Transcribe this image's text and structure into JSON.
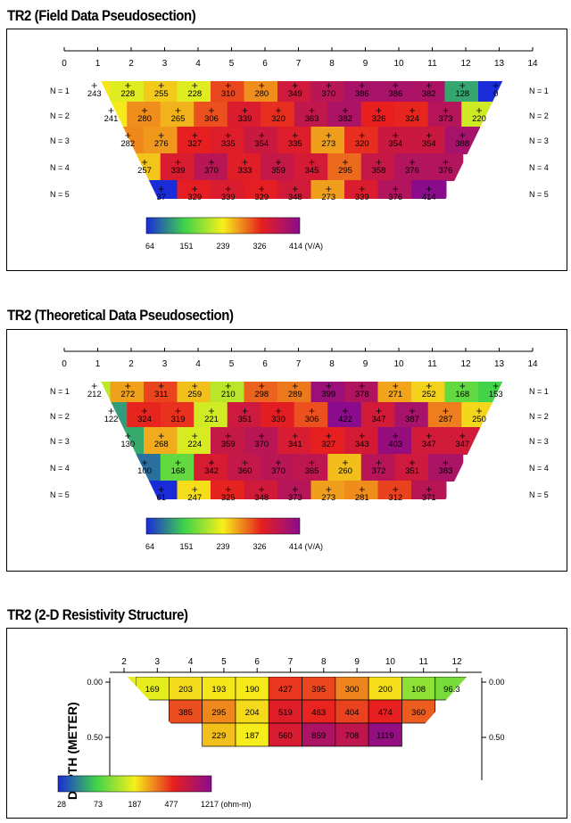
{
  "panels": [
    {
      "title": "TR2 (Field Data Pseudosection)",
      "ticks": [
        "0",
        "1",
        "2",
        "3",
        "4",
        "5",
        "6",
        "7",
        "8",
        "9",
        "10",
        "11",
        "12",
        "13",
        "14"
      ],
      "row_labels": [
        "N = 1",
        "N = 2",
        "N = 3",
        "N = 4",
        "N = 5"
      ],
      "rows": [
        [
          "243",
          "228",
          "255",
          "228",
          "310",
          "280",
          "349",
          "370",
          "386",
          "386",
          "382",
          "128",
          "0"
        ],
        [
          "241",
          "280",
          "265",
          "306",
          "339",
          "320",
          "363",
          "382",
          "326",
          "324",
          "373",
          "220"
        ],
        [
          "282",
          "276",
          "327",
          "335",
          "354",
          "335",
          "273",
          "320",
          "354",
          "354",
          "388"
        ],
        [
          "257",
          "339",
          "370",
          "333",
          "359",
          "345",
          "295",
          "358",
          "376",
          "376"
        ],
        [
          "37",
          "329",
          "339",
          "329",
          "348",
          "273",
          "339",
          "376",
          "414"
        ]
      ],
      "colorbar": {
        "labels": [
          "64",
          "151",
          "239",
          "326",
          "414 (V/A)"
        ]
      }
    },
    {
      "title": "TR2 (Theoretical Data Pseudosection)",
      "ticks": [
        "0",
        "1",
        "2",
        "3",
        "4",
        "5",
        "6",
        "7",
        "8",
        "9",
        "10",
        "11",
        "12",
        "13",
        "14"
      ],
      "row_labels": [
        "N = 1",
        "N = 2",
        "N = 3",
        "N = 4",
        "N = 5"
      ],
      "rows": [
        [
          "212",
          "272",
          "311",
          "259",
          "210",
          "298",
          "289",
          "399",
          "378",
          "271",
          "252",
          "168",
          "153"
        ],
        [
          "122",
          "324",
          "319",
          "221",
          "351",
          "330",
          "306",
          "422",
          "347",
          "387",
          "287",
          "250"
        ],
        [
          "130",
          "268",
          "224",
          "359",
          "370",
          "341",
          "327",
          "343",
          "403",
          "347",
          "347"
        ],
        [
          "100",
          "168",
          "342",
          "360",
          "370",
          "365",
          "260",
          "372",
          "351",
          "383"
        ],
        [
          "61",
          "247",
          "325",
          "348",
          "373",
          "273",
          "281",
          "312",
          "371"
        ]
      ],
      "colorbar": {
        "labels": [
          "64",
          "151",
          "239",
          "326",
          "414 (V/A)"
        ]
      }
    }
  ],
  "resistivity": {
    "title": "TR2 (2-D Resistivity Structure)",
    "ylabel": "DEPTH (METER)",
    "ticks": [
      "2",
      "3",
      "4",
      "5",
      "6",
      "7",
      "8",
      "9",
      "10",
      "11",
      "12"
    ],
    "depth_labels": [
      "0.00",
      "0.50"
    ],
    "rows": [
      [
        "169",
        "203",
        "193",
        "190",
        "427",
        "395",
        "300",
        "200",
        "108",
        "96.3"
      ],
      [
        "385",
        "295",
        "204",
        "519",
        "463",
        "404",
        "474",
        "360"
      ],
      [
        "229",
        "187",
        "560",
        "859",
        "708",
        "1119"
      ]
    ],
    "colorbar": {
      "labels": [
        "28",
        "73",
        "187",
        "477",
        "1217 (ohm-m)"
      ]
    }
  },
  "colors": {
    "low": "#1a2bd8",
    "mid_low": "#3fd34a",
    "mid": "#f6f01a",
    "mid_high": "#e71f1f",
    "high": "#8a0c8c"
  }
}
